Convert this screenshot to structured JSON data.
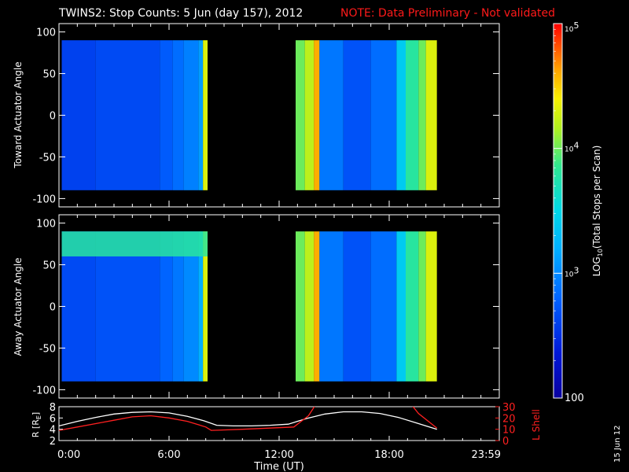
{
  "header": {
    "title": "TWINS2: Stop Counts:  5 Jun (day 157), 2012",
    "note": "NOTE: Data Preliminary - Not validated",
    "note_color": "#ff1a1a"
  },
  "side_stamp": "15 Jun 12",
  "colors": {
    "background": "#000000",
    "axes": "#ffffff",
    "accent": "#ff0000",
    "lshell": "#ff2020",
    "r_curve": "#ffffff"
  },
  "chart_data": [
    {
      "type": "heatmap",
      "title": "",
      "ylabel": "Toward Actuator Angle",
      "ylim": [
        -110,
        110
      ],
      "yticks": [
        -100,
        -50,
        0,
        50,
        100
      ],
      "xlim_hours": [
        0,
        24
      ],
      "actuator_angle_range": [
        -90,
        90
      ],
      "data_intervals_hours": [
        [
          0.15,
          8.1
        ],
        [
          12.9,
          20.6
        ]
      ],
      "value_log10_range": [
        2,
        5
      ],
      "segments": [
        {
          "start_h": 0.15,
          "end_h": 2.0,
          "log10": 2.6
        },
        {
          "start_h": 2.0,
          "end_h": 5.5,
          "log10": 2.65
        },
        {
          "start_h": 5.5,
          "end_h": 6.2,
          "log10": 2.75
        },
        {
          "start_h": 6.2,
          "end_h": 6.8,
          "log10": 2.85
        },
        {
          "start_h": 6.8,
          "end_h": 7.6,
          "log10": 2.95
        },
        {
          "start_h": 7.6,
          "end_h": 7.85,
          "log10": 3.1
        },
        {
          "start_h": 7.85,
          "end_h": 8.1,
          "log10": 4.3
        },
        {
          "start_h": 12.9,
          "end_h": 13.4,
          "log10": 4.0
        },
        {
          "start_h": 13.4,
          "end_h": 13.9,
          "log10": 4.2
        },
        {
          "start_h": 13.9,
          "end_h": 14.2,
          "log10": 4.6
        },
        {
          "start_h": 14.2,
          "end_h": 15.5,
          "log10": 2.9
        },
        {
          "start_h": 15.5,
          "end_h": 17.0,
          "log10": 2.7
        },
        {
          "start_h": 17.0,
          "end_h": 18.4,
          "log10": 2.85
        },
        {
          "start_h": 18.4,
          "end_h": 18.9,
          "log10": 3.4
        },
        {
          "start_h": 18.9,
          "end_h": 19.6,
          "log10": 3.8
        },
        {
          "start_h": 19.6,
          "end_h": 20.0,
          "log10": 4.0
        },
        {
          "start_h": 20.0,
          "end_h": 20.6,
          "log10": 4.3
        }
      ]
    },
    {
      "type": "heatmap",
      "title": "",
      "ylabel": "Away Actuator Angle",
      "ylim": [
        -110,
        110
      ],
      "yticks": [
        -100,
        -50,
        0,
        50,
        100
      ],
      "xlim_hours": [
        0,
        24
      ],
      "actuator_angle_range": [
        -90,
        90
      ],
      "data_intervals_hours": [
        [
          0.15,
          8.1
        ],
        [
          12.9,
          20.6
        ]
      ],
      "value_log10_range": [
        2,
        5
      ],
      "high_band": {
        "start_h": 0.15,
        "end_h": 8.1,
        "angle_from": 60,
        "angle_to": 90,
        "log10": 3.8
      },
      "segments": [
        {
          "start_h": 0.15,
          "end_h": 2.0,
          "log10": 2.65
        },
        {
          "start_h": 2.0,
          "end_h": 5.5,
          "log10": 2.7
        },
        {
          "start_h": 5.5,
          "end_h": 6.2,
          "log10": 2.8
        },
        {
          "start_h": 6.2,
          "end_h": 6.8,
          "log10": 2.9
        },
        {
          "start_h": 6.8,
          "end_h": 7.6,
          "log10": 3.0
        },
        {
          "start_h": 7.6,
          "end_h": 7.85,
          "log10": 3.2
        },
        {
          "start_h": 7.85,
          "end_h": 8.1,
          "log10": 4.3
        },
        {
          "start_h": 12.9,
          "end_h": 13.4,
          "log10": 4.0
        },
        {
          "start_h": 13.4,
          "end_h": 13.9,
          "log10": 4.2
        },
        {
          "start_h": 13.9,
          "end_h": 14.2,
          "log10": 4.6
        },
        {
          "start_h": 14.2,
          "end_h": 15.5,
          "log10": 2.9
        },
        {
          "start_h": 15.5,
          "end_h": 17.0,
          "log10": 2.7
        },
        {
          "start_h": 17.0,
          "end_h": 18.4,
          "log10": 2.85
        },
        {
          "start_h": 18.4,
          "end_h": 18.9,
          "log10": 3.4
        },
        {
          "start_h": 18.9,
          "end_h": 19.6,
          "log10": 3.8
        },
        {
          "start_h": 19.6,
          "end_h": 20.0,
          "log10": 4.0
        },
        {
          "start_h": 20.0,
          "end_h": 20.6,
          "log10": 4.3
        }
      ]
    },
    {
      "type": "line",
      "title": "",
      "xlabel": "Time (UT)",
      "xlim_hours": [
        0,
        24
      ],
      "xticks": [
        {
          "h": 0,
          "label": "0:00"
        },
        {
          "h": 6,
          "label": "6:00"
        },
        {
          "h": 12,
          "label": "12:00"
        },
        {
          "h": 18,
          "label": "18:00"
        },
        {
          "h": 24,
          "label": "23:59"
        }
      ],
      "ylabel_left": "R [R",
      "ylabel_left_sub": "E",
      "ylabel_left_close": "]",
      "ylim_left": [
        2,
        8
      ],
      "yticks_left": [
        2,
        4,
        6,
        8
      ],
      "ylabel_right": "L Shell",
      "ylim_right": [
        0,
        30
      ],
      "yticks_right": [
        0,
        10,
        20,
        30
      ],
      "series": [
        {
          "axis": "left",
          "color": "#ffffff",
          "x": [
            0,
            1,
            2,
            3,
            4,
            5,
            6,
            7,
            7.9,
            8.6,
            9.5,
            10.5,
            11.5,
            12.5,
            13.5,
            14.5,
            15.5,
            16.5,
            17.5,
            18.5,
            19.5,
            20.6
          ],
          "y": [
            4.6,
            5.4,
            6.1,
            6.7,
            7.0,
            7.1,
            6.9,
            6.3,
            5.5,
            4.7,
            4.6,
            4.6,
            4.7,
            4.9,
            5.9,
            6.7,
            7.1,
            7.1,
            6.8,
            6.1,
            5.1,
            4.0
          ]
        },
        {
          "axis": "right",
          "color": "#ff2020",
          "x": [
            0,
            1,
            2,
            3,
            4,
            5,
            6,
            7,
            8,
            8.3,
            10,
            12.8,
            13.6,
            14.0
          ],
          "y": [
            9,
            12,
            15,
            18,
            21,
            22,
            20,
            17,
            12,
            9,
            10,
            12,
            22,
            32
          ]
        },
        {
          "axis": "right",
          "color": "#ff2020",
          "x": [
            19.2,
            19.6,
            20.6
          ],
          "y": [
            32,
            24,
            11
          ]
        }
      ]
    },
    {
      "type": "heatmap",
      "title": "",
      "ylabel": "LOG",
      "ylabel_sub": "10",
      "ylabel_rest": "(Total Stops per Scan)",
      "colorbar_min_label": "100",
      "colorbar_ticks": [
        {
          "log10": 3,
          "base": "10",
          "exp": "3"
        },
        {
          "log10": 4,
          "base": "10",
          "exp": "4"
        },
        {
          "log10": 5,
          "base": "10",
          "exp": "5"
        }
      ],
      "value_log10_range": [
        2,
        5
      ]
    }
  ]
}
